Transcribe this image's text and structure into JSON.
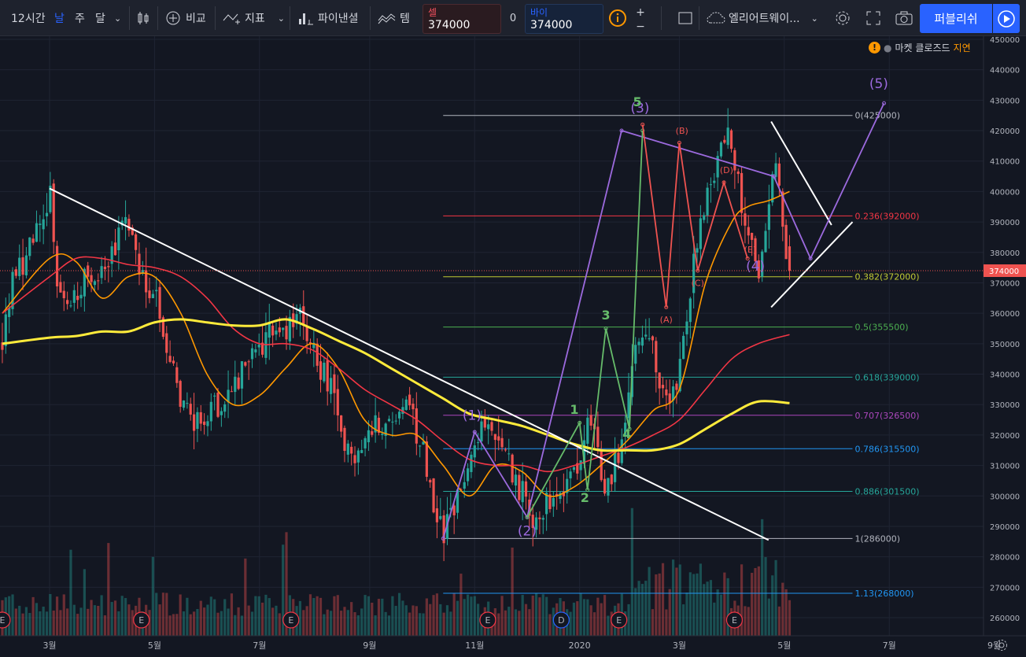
{
  "toolbar": {
    "interval": "12시간",
    "periods": [
      "날",
      "주",
      "달"
    ],
    "compare_label": "비교",
    "indicators_label": "지표",
    "pine_label": "파이낸셜",
    "template_label": "템",
    "sell": {
      "label": "셀",
      "price": "374000"
    },
    "spread": "0",
    "buy": {
      "label": "바이",
      "price": "374000"
    },
    "qty_plus": "+",
    "qty_minus": "−",
    "layout_name": "엘리어트웨이...",
    "publish_label": "퍼블리쉬"
  },
  "status": {
    "dot": "●",
    "text": "마켓 클로즈드",
    "delay": "지연"
  },
  "colors": {
    "up": "#26a69a",
    "down": "#ef5350",
    "ma_fast": "#ff9800",
    "ma_mid": "#f23645",
    "ma_slow": "#ffeb3b",
    "wave_purple": "#9c6ade",
    "wave_green": "#66bb6a",
    "wave_red": "#ef5350",
    "accent": "#2962ff"
  },
  "chart_data": {
    "type": "candlestick",
    "price_axis": {
      "min": 255000,
      "max": 452000,
      "ticks": [
        260000,
        270000,
        280000,
        290000,
        300000,
        310000,
        320000,
        330000,
        340000,
        350000,
        360000,
        370000,
        380000,
        390000,
        400000,
        410000,
        420000,
        430000,
        440000,
        450000
      ]
    },
    "current_price": {
      "value": 374000,
      "label": "374000"
    },
    "time_axis": {
      "ticks": [
        {
          "label": "3월",
          "t": 0.0
        },
        {
          "label": "5월",
          "t": 2.0
        },
        {
          "label": "7월",
          "t": 4.0
        },
        {
          "label": "9월",
          "t": 6.1
        },
        {
          "label": "11월",
          "t": 8.1
        },
        {
          "label": "2020",
          "t": 10.1
        },
        {
          "label": "3월",
          "t": 12.0
        },
        {
          "label": "5월",
          "t": 14.0
        },
        {
          "label": "7월",
          "t": 16.0
        },
        {
          "label": "9월",
          "t": 18.0
        }
      ]
    },
    "price_path": [
      [
        -0.9,
        350000
      ],
      [
        -0.7,
        372000
      ],
      [
        -0.5,
        375000
      ],
      [
        -0.3,
        385000
      ],
      [
        -0.1,
        390000
      ],
      [
        0.0,
        401000
      ],
      [
        0.15,
        368000
      ],
      [
        0.3,
        362000
      ],
      [
        0.5,
        365000
      ],
      [
        0.7,
        372000
      ],
      [
        0.9,
        368000
      ],
      [
        1.1,
        377000
      ],
      [
        1.3,
        385000
      ],
      [
        1.5,
        391000
      ],
      [
        1.7,
        375000
      ],
      [
        1.9,
        365000
      ],
      [
        2.1,
        362000
      ],
      [
        2.3,
        345000
      ],
      [
        2.5,
        330000
      ],
      [
        2.7,
        328000
      ],
      [
        2.9,
        322000
      ],
      [
        3.1,
        326000
      ],
      [
        3.3,
        332000
      ],
      [
        3.5,
        334000
      ],
      [
        3.7,
        343000
      ],
      [
        3.9,
        347000
      ],
      [
        4.1,
        352000
      ],
      [
        4.3,
        356000
      ],
      [
        4.5,
        355000
      ],
      [
        4.7,
        358000
      ],
      [
        4.85,
        360000
      ],
      [
        5.0,
        348000
      ],
      [
        5.2,
        340000
      ],
      [
        5.4,
        333000
      ],
      [
        5.6,
        318000
      ],
      [
        5.8,
        312000
      ],
      [
        6.0,
        318000
      ],
      [
        6.2,
        325000
      ],
      [
        6.4,
        322000
      ],
      [
        6.6,
        326000
      ],
      [
        6.8,
        328000
      ],
      [
        7.0,
        322000
      ],
      [
        7.2,
        308000
      ],
      [
        7.35,
        295000
      ],
      [
        7.5,
        288000
      ],
      [
        7.7,
        298000
      ],
      [
        7.9,
        304000
      ],
      [
        8.1,
        316000
      ],
      [
        8.3,
        325000
      ],
      [
        8.5,
        318000
      ],
      [
        8.7,
        313000
      ],
      [
        8.9,
        305000
      ],
      [
        9.1,
        297000
      ],
      [
        9.3,
        293000
      ],
      [
        9.5,
        298000
      ],
      [
        9.7,
        303000
      ],
      [
        9.9,
        307000
      ],
      [
        10.1,
        313000
      ],
      [
        10.3,
        323000
      ],
      [
        10.45,
        312000
      ],
      [
        10.6,
        302000
      ],
      [
        10.8,
        312000
      ],
      [
        11.0,
        330000
      ],
      [
        11.2,
        350000
      ],
      [
        11.4,
        356000
      ],
      [
        11.6,
        338000
      ],
      [
        11.8,
        328000
      ],
      [
        12.0,
        340000
      ],
      [
        12.15,
        360000
      ],
      [
        12.3,
        378000
      ],
      [
        12.5,
        398000
      ],
      [
        12.7,
        410000
      ],
      [
        12.9,
        418000
      ],
      [
        13.1,
        405000
      ],
      [
        13.3,
        390000
      ],
      [
        13.5,
        366000
      ],
      [
        13.7,
        398000
      ],
      [
        13.8,
        413000
      ],
      [
        13.95,
        395000
      ],
      [
        14.05,
        372000
      ],
      [
        14.15,
        374000
      ]
    ],
    "volume_scale": {
      "max": 1.0
    },
    "moving_averages": [
      {
        "color": "#ff9800",
        "points": [
          [
            -0.9,
            360000
          ],
          [
            0.0,
            378000
          ],
          [
            0.5,
            377000
          ],
          [
            1.0,
            365000
          ],
          [
            1.5,
            372000
          ],
          [
            2.0,
            372000
          ],
          [
            2.5,
            360000
          ],
          [
            3.0,
            340000
          ],
          [
            3.5,
            330000
          ],
          [
            4.0,
            333000
          ],
          [
            4.5,
            342000
          ],
          [
            5.0,
            350000
          ],
          [
            5.5,
            342000
          ],
          [
            6.0,
            325000
          ],
          [
            6.5,
            320000
          ],
          [
            7.0,
            320000
          ],
          [
            7.5,
            310000
          ],
          [
            8.0,
            300000
          ],
          [
            8.5,
            310000
          ],
          [
            9.0,
            308000
          ],
          [
            9.5,
            300000
          ],
          [
            10.0,
            303000
          ],
          [
            10.5,
            310000
          ],
          [
            11.0,
            318000
          ],
          [
            11.5,
            328000
          ],
          [
            12.0,
            335000
          ],
          [
            12.5,
            370000
          ],
          [
            13.0,
            390000
          ],
          [
            13.3,
            395000
          ],
          [
            13.7,
            397000
          ],
          [
            14.1,
            400000
          ]
        ]
      },
      {
        "color": "#f23645",
        "points": [
          [
            -0.9,
            360000
          ],
          [
            0.0,
            372000
          ],
          [
            0.5,
            378000
          ],
          [
            1.0,
            378000
          ],
          [
            1.5,
            376000
          ],
          [
            2.0,
            375000
          ],
          [
            2.5,
            372000
          ],
          [
            3.0,
            365000
          ],
          [
            3.5,
            355000
          ],
          [
            4.0,
            350000
          ],
          [
            4.5,
            350000
          ],
          [
            5.0,
            348000
          ],
          [
            5.5,
            342000
          ],
          [
            6.0,
            335000
          ],
          [
            6.5,
            330000
          ],
          [
            7.0,
            325000
          ],
          [
            7.5,
            318000
          ],
          [
            8.0,
            312000
          ],
          [
            8.5,
            310000
          ],
          [
            9.0,
            310000
          ],
          [
            9.5,
            308000
          ],
          [
            10.0,
            310000
          ],
          [
            10.5,
            313000
          ],
          [
            11.0,
            316000
          ],
          [
            11.5,
            320000
          ],
          [
            12.0,
            325000
          ],
          [
            12.5,
            335000
          ],
          [
            13.0,
            345000
          ],
          [
            13.5,
            350000
          ],
          [
            14.1,
            353000
          ]
        ]
      },
      {
        "color": "#ffeb3b",
        "points": [
          [
            -0.9,
            350000
          ],
          [
            0.0,
            352000
          ],
          [
            0.5,
            352500
          ],
          [
            1.0,
            354000
          ],
          [
            1.5,
            354000
          ],
          [
            2.0,
            357000
          ],
          [
            2.5,
            358000
          ],
          [
            3.0,
            357000
          ],
          [
            3.5,
            356000
          ],
          [
            4.0,
            356000
          ],
          [
            4.5,
            358000
          ],
          [
            5.0,
            355000
          ],
          [
            5.5,
            351000
          ],
          [
            6.0,
            347000
          ],
          [
            6.5,
            342000
          ],
          [
            7.0,
            337000
          ],
          [
            7.5,
            332000
          ],
          [
            8.0,
            327000
          ],
          [
            8.5,
            325000
          ],
          [
            9.0,
            323000
          ],
          [
            9.5,
            320000
          ],
          [
            10.0,
            317000
          ],
          [
            10.5,
            315000
          ],
          [
            11.0,
            315000
          ],
          [
            11.5,
            315000
          ],
          [
            12.0,
            317000
          ],
          [
            12.5,
            322000
          ],
          [
            13.0,
            327000
          ],
          [
            13.5,
            331000
          ],
          [
            14.1,
            330500
          ]
        ]
      }
    ],
    "fib_levels": [
      {
        "label": "0(425000)",
        "value": 425000,
        "color": "#b2b5be"
      },
      {
        "label": "0.236(392000)",
        "value": 392000,
        "color": "#f23645"
      },
      {
        "label": "0.382(372000)",
        "value": 372000,
        "color": "#c0ca33"
      },
      {
        "label": "0.5(355500)",
        "value": 355500,
        "color": "#4caf50"
      },
      {
        "label": "0.618(339000)",
        "value": 339000,
        "color": "#26a69a"
      },
      {
        "label": "0.707(326500)",
        "value": 326500,
        "color": "#ab47bc"
      },
      {
        "label": "0.786(315500)",
        "value": 315500,
        "color": "#2196f3"
      },
      {
        "label": "0.886(301500)",
        "value": 301500,
        "color": "#26a69a"
      },
      {
        "label": "1(286000)",
        "value": 286000,
        "color": "#b2b5be"
      },
      {
        "label": "1.13(268000)",
        "value": 268000,
        "color": "#2196f3"
      }
    ],
    "fib_range": {
      "t_start": 7.5,
      "t_end": 15.3
    },
    "trend_lines": [
      {
        "name": "downtrend",
        "from": [
          0.0,
          401000
        ],
        "to": [
          13.7,
          285500
        ],
        "color": "#ffffff"
      },
      {
        "name": "triangle-upper",
        "from": [
          13.75,
          423000
        ],
        "to": [
          14.9,
          389000
        ],
        "color": "#ffffff"
      },
      {
        "name": "triangle-lower",
        "from": [
          13.75,
          362000
        ],
        "to": [
          15.3,
          390000
        ],
        "color": "#ffffff"
      }
    ],
    "wave_paths": [
      {
        "name": "purple-count",
        "color": "#9c6ade",
        "points": [
          [
            7.5,
            286000
          ],
          [
            8.1,
            321000
          ],
          [
            9.1,
            293000
          ],
          [
            10.9,
            420000
          ],
          [
            13.8,
            405000
          ],
          [
            14.5,
            378000
          ],
          [
            15.9,
            429000
          ]
        ]
      },
      {
        "name": "green-count",
        "color": "#66bb6a",
        "points": [
          [
            9.1,
            293000
          ],
          [
            10.1,
            324000
          ],
          [
            10.25,
            302000
          ],
          [
            10.6,
            355000
          ],
          [
            11.05,
            322000
          ],
          [
            11.3,
            420000
          ]
        ]
      },
      {
        "name": "red-count",
        "color": "#ef5350",
        "points": [
          [
            11.3,
            422000
          ],
          [
            11.75,
            362000
          ],
          [
            12.0,
            416000
          ],
          [
            12.35,
            374000
          ],
          [
            12.85,
            403000
          ],
          [
            13.3,
            378000
          ]
        ]
      }
    ],
    "wave_labels": [
      {
        "text": "(5)",
        "t": 15.8,
        "v": 434000,
        "color": "#9c6ade"
      },
      {
        "text": "(3)",
        "t": 11.25,
        "v": 426000,
        "color": "#9c6ade"
      },
      {
        "text": "(4)",
        "t": 13.45,
        "v": 374000,
        "color": "#9c6ade"
      },
      {
        "text": "(2)",
        "t": 9.1,
        "v": 287000,
        "color": "#9c6ade"
      },
      {
        "text": "(1)",
        "t": 8.05,
        "v": 325000,
        "color": "#9c6ade"
      },
      {
        "text": "5",
        "t": 11.2,
        "v": 428000,
        "color": "#66bb6a"
      },
      {
        "text": "3",
        "t": 10.6,
        "v": 358000,
        "color": "#66bb6a"
      },
      {
        "text": "1",
        "t": 10.0,
        "v": 327000,
        "color": "#66bb6a"
      },
      {
        "text": "2",
        "t": 10.2,
        "v": 298000,
        "color": "#66bb6a"
      },
      {
        "text": "4",
        "t": 11.0,
        "v": 319000,
        "color": "#66bb6a"
      },
      {
        "text": "(B)",
        "t": 12.05,
        "v": 419000,
        "color": "#ef5350"
      },
      {
        "text": "(D)",
        "t": 12.9,
        "v": 406000,
        "color": "#ef5350"
      },
      {
        "text": "(E)",
        "t": 13.35,
        "v": 380000,
        "color": "#ef5350"
      },
      {
        "text": "(C)",
        "t": 12.35,
        "v": 369000,
        "color": "#ef5350"
      },
      {
        "text": "(A)",
        "t": 11.75,
        "v": 357000,
        "color": "#ef5350"
      }
    ],
    "events": [
      {
        "label": "E",
        "t": -0.9
      },
      {
        "label": "E",
        "t": 1.75
      },
      {
        "label": "E",
        "t": 4.6
      },
      {
        "label": "E",
        "t": 8.35
      },
      {
        "label": "D",
        "t": 9.75
      },
      {
        "label": "E",
        "t": 10.85
      },
      {
        "label": "E",
        "t": 13.05
      }
    ]
  }
}
